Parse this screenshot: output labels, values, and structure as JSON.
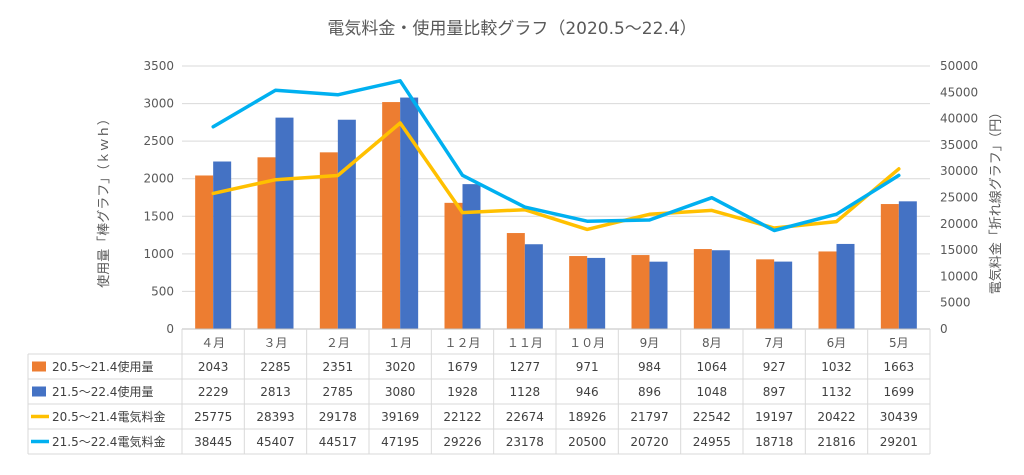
{
  "chart_data": {
    "type": "bar+line",
    "title": "電気料金・使用量比較グラフ（2020.5～22.4）",
    "ylabel_left": "使用量「棒グラフ」（ｋｗｈ）",
    "ylabel_right": "電気料金「折れ線グラフ」（円）",
    "ylim_left": [
      0,
      3500
    ],
    "ylim_right": [
      0,
      50000
    ],
    "yticks_left": [
      "0",
      "500",
      "1000",
      "1500",
      "2000",
      "2500",
      "3000",
      "3500"
    ],
    "yticks_right": [
      "0",
      "5000",
      "10000",
      "15000",
      "20000",
      "25000",
      "30000",
      "35000",
      "40000",
      "45000",
      "50000"
    ],
    "categories": [
      "４月",
      "３月",
      "２月",
      "１月",
      "１２月",
      "１１月",
      "１０月",
      "9月",
      "8月",
      "7月",
      "6月",
      "5月"
    ],
    "grid": true,
    "legend": "table-below",
    "bar_series": [
      {
        "name": "20.5～21.4使用量",
        "color": "#ED7D31",
        "values": [
          2043,
          2285,
          2351,
          3020,
          1679,
          1277,
          971,
          984,
          1064,
          927,
          1032,
          1663
        ]
      },
      {
        "name": "21.5～22.4使用量",
        "color": "#4472C4",
        "values": [
          2229,
          2813,
          2785,
          3080,
          1928,
          1128,
          946,
          896,
          1048,
          897,
          1132,
          1699
        ]
      }
    ],
    "line_series": [
      {
        "name": "20.5～21.4電気料金",
        "color": "#FFC000",
        "values": [
          25775,
          28393,
          29178,
          39169,
          22122,
          22674,
          18926,
          21797,
          22542,
          19197,
          20422,
          30439
        ]
      },
      {
        "name": "21.5～22.4電気料金",
        "color": "#00B0F0",
        "values": [
          38445,
          45407,
          44517,
          47195,
          29226,
          23178,
          20500,
          20720,
          24955,
          18718,
          21816,
          29201
        ]
      }
    ]
  }
}
